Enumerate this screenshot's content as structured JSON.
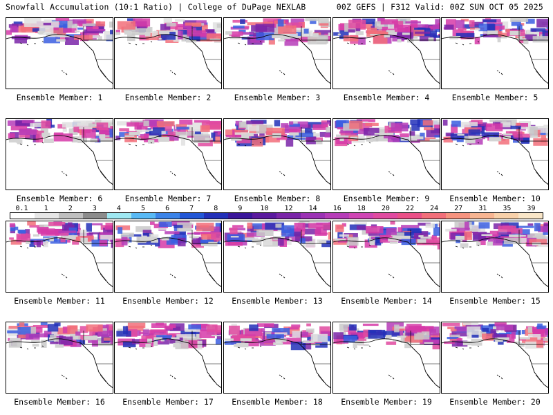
{
  "header": {
    "left": "Snowfall Accumulation (10:1 Ratio) | College of DuPage NEXLAB",
    "right": "00Z GEFS | F312 Valid: 00Z SUN OCT 05 2025"
  },
  "panels": [
    {
      "label": "Ensemble Member: 1"
    },
    {
      "label": "Ensemble Member: 2"
    },
    {
      "label": "Ensemble Member: 3"
    },
    {
      "label": "Ensemble Member: 4"
    },
    {
      "label": "Ensemble Member: 5"
    },
    {
      "label": "Ensemble Member: 6"
    },
    {
      "label": "Ensemble Member: 7"
    },
    {
      "label": "Ensemble Member: 8"
    },
    {
      "label": "Ensemble Member: 9"
    },
    {
      "label": "Ensemble Member: 10"
    },
    {
      "label": "Ensemble Member: 11"
    },
    {
      "label": "Ensemble Member: 12"
    },
    {
      "label": "Ensemble Member: 13"
    },
    {
      "label": "Ensemble Member: 14"
    },
    {
      "label": "Ensemble Member: 15"
    },
    {
      "label": "Ensemble Member: 16"
    },
    {
      "label": "Ensemble Member: 17"
    },
    {
      "label": "Ensemble Member: 18"
    },
    {
      "label": "Ensemble Member: 19"
    },
    {
      "label": "Ensemble Member: 20"
    }
  ],
  "colorbar": {
    "labels": [
      "0.1",
      "1",
      "2",
      "3",
      "4",
      "5",
      "6",
      "7",
      "8",
      "9",
      "10",
      "12",
      "14",
      "16",
      "18",
      "20",
      "22",
      "24",
      "27",
      "31",
      "35",
      "39"
    ],
    "colors": [
      "#ffffff",
      "#e6e6e6",
      "#bfbfbf",
      "#8c8c8c",
      "#9fe8f2",
      "#58b9f5",
      "#3b83e8",
      "#2257d6",
      "#2230b8",
      "#3a169a",
      "#5a1a9e",
      "#7a25a8",
      "#9b32b4",
      "#b63cb8",
      "#cf45b4",
      "#e04aa0",
      "#ea5087",
      "#f26f7a",
      "#f6937f",
      "#f7b592",
      "#f8d1aa",
      "#f9e6c8"
    ]
  }
}
